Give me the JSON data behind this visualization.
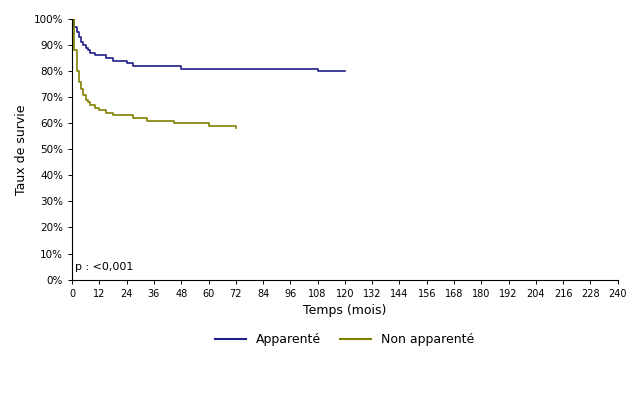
{
  "title": "",
  "xlabel": "Temps (mois)",
  "ylabel": "Taux de survie",
  "xlim": [
    0,
    240
  ],
  "ylim": [
    0,
    1.0
  ],
  "xticks": [
    0,
    12,
    24,
    36,
    48,
    60,
    72,
    84,
    96,
    108,
    120,
    132,
    144,
    156,
    168,
    180,
    192,
    204,
    216,
    228,
    240
  ],
  "yticks": [
    0.0,
    0.1,
    0.2,
    0.3,
    0.4,
    0.5,
    0.6,
    0.7,
    0.8,
    0.9,
    1.0
  ],
  "ytick_labels": [
    "0%",
    "10%",
    "20%",
    "30%",
    "40%",
    "50%",
    "60%",
    "70%",
    "80%",
    "90%",
    "100%"
  ],
  "p_text": "p : <0,001",
  "legend_labels": [
    "Apparenté",
    "Non apparenté"
  ],
  "color_apparente": "#1f1f8c",
  "color_non_apparente": "#808000",
  "line_width": 1.2,
  "apparente_x": [
    0,
    1,
    2,
    3,
    4,
    5,
    6,
    7,
    8,
    9,
    10,
    11,
    12,
    15,
    18,
    21,
    24,
    27,
    30,
    33,
    36,
    39,
    42,
    45,
    48,
    51,
    54,
    57,
    60,
    63,
    66,
    69,
    72,
    84,
    96,
    108,
    120
  ],
  "apparente_y": [
    1.0,
    0.97,
    0.95,
    0.93,
    0.91,
    0.9,
    0.89,
    0.88,
    0.87,
    0.87,
    0.86,
    0.86,
    0.86,
    0.85,
    0.84,
    0.84,
    0.83,
    0.82,
    0.82,
    0.82,
    0.82,
    0.82,
    0.82,
    0.82,
    0.81,
    0.81,
    0.81,
    0.81,
    0.81,
    0.81,
    0.81,
    0.81,
    0.81,
    0.81,
    0.81,
    0.8,
    0.8
  ],
  "non_apparente_x": [
    0,
    1,
    2,
    3,
    4,
    5,
    6,
    7,
    8,
    9,
    10,
    11,
    12,
    15,
    18,
    21,
    24,
    27,
    30,
    33,
    36,
    39,
    42,
    45,
    48,
    51,
    54,
    57,
    60,
    63,
    66,
    69,
    72
  ],
  "non_apparente_y": [
    1.0,
    0.88,
    0.8,
    0.76,
    0.73,
    0.71,
    0.69,
    0.68,
    0.67,
    0.67,
    0.66,
    0.66,
    0.65,
    0.64,
    0.63,
    0.63,
    0.63,
    0.62,
    0.62,
    0.61,
    0.61,
    0.61,
    0.61,
    0.6,
    0.6,
    0.6,
    0.6,
    0.6,
    0.59,
    0.59,
    0.59,
    0.59,
    0.58
  ]
}
